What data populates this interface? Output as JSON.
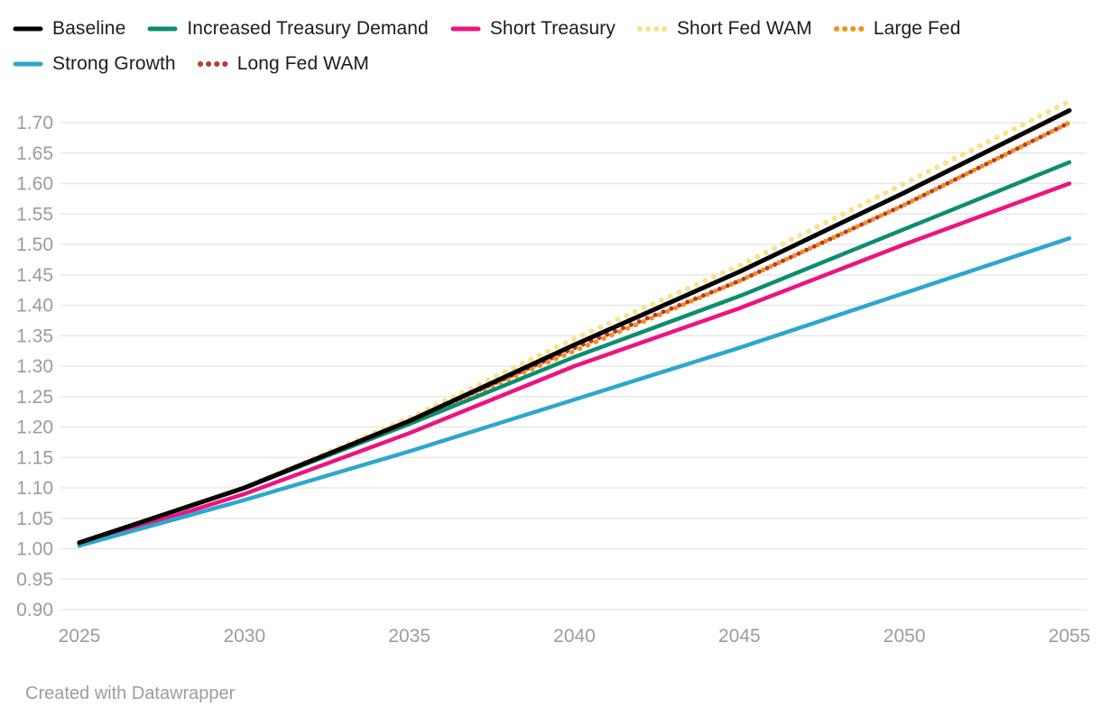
{
  "footer": {
    "credit": "Created with Datawrapper"
  },
  "chart_data": {
    "type": "line",
    "x": [
      2025,
      2030,
      2035,
      2040,
      2045,
      2050,
      2055
    ],
    "x_ticks": [
      "2025",
      "2030",
      "2035",
      "2040",
      "2045",
      "2050",
      "2055"
    ],
    "y_ticks": [
      "0.90",
      "0.95",
      "1.00",
      "1.05",
      "1.10",
      "1.15",
      "1.20",
      "1.25",
      "1.30",
      "1.35",
      "1.40",
      "1.45",
      "1.50",
      "1.55",
      "1.60",
      "1.65",
      "1.70"
    ],
    "ylim": [
      0.9,
      1.755
    ],
    "xlim": [
      2025,
      2055
    ],
    "grid": "horizontal",
    "grid_color": "#e8e8e8",
    "axis_label_color": "#9c9c9c",
    "legend_position": "top",
    "series": [
      {
        "name": "Baseline",
        "color": "#000000",
        "style": "solid",
        "width": 5,
        "values": [
          1.01,
          1.1,
          1.21,
          1.335,
          1.455,
          1.585,
          1.72
        ]
      },
      {
        "name": "Increased Treasury Demand",
        "color": "#0d8d70",
        "style": "solid",
        "width": 4.5,
        "values": [
          1.01,
          1.1,
          1.205,
          1.315,
          1.415,
          1.525,
          1.635
        ]
      },
      {
        "name": "Short Treasury",
        "color": "#ee1380",
        "style": "solid",
        "width": 4.5,
        "values": [
          1.005,
          1.09,
          1.19,
          1.3,
          1.395,
          1.5,
          1.6
        ]
      },
      {
        "name": "Short Fed WAM",
        "color": "#fbe189",
        "style": "dotted",
        "width": 6,
        "dash": "0.1 10.5",
        "values": [
          1.01,
          1.1,
          1.215,
          1.345,
          1.465,
          1.6,
          1.735
        ]
      },
      {
        "name": "Large Fed",
        "color": "#f39019",
        "style": "dotted",
        "width": 5.5,
        "dash": "0.1 9.5",
        "values": [
          1.01,
          1.1,
          1.21,
          1.325,
          1.44,
          1.565,
          1.7
        ]
      },
      {
        "name": "Strong Growth",
        "color": "#2ca7ce",
        "style": "solid",
        "width": 4.5,
        "values": [
          1.005,
          1.08,
          1.16,
          1.245,
          1.33,
          1.42,
          1.51
        ]
      },
      {
        "name": "Long Fed WAM",
        "color": "#bf362b",
        "style": "dotted",
        "width": 5,
        "dash": "0.1 9.5",
        "values": [
          1.01,
          1.1,
          1.21,
          1.33,
          1.44,
          1.565,
          1.7
        ]
      }
    ],
    "draw_order": [
      "Short Fed WAM",
      "Large Fed",
      "Long Fed WAM",
      "Increased Treasury Demand",
      "Short Treasury",
      "Strong Growth",
      "Baseline"
    ],
    "legend_row_break_after_index": 4
  }
}
